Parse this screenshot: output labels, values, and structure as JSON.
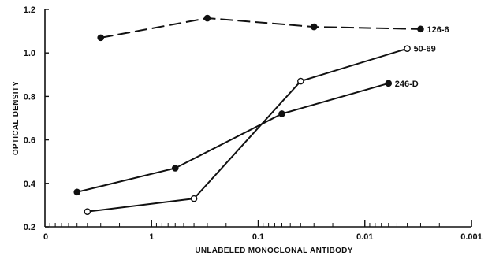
{
  "chart_data": {
    "type": "line",
    "title": "",
    "xlabel": "UNLABELED MONOCLONAL ANTIBODY",
    "ylabel": "OPTICAL DENSITY",
    "x_scale": "log-reversed",
    "xlim": [
      10,
      0.001
    ],
    "ylim": [
      0.2,
      1.2
    ],
    "x_ticks": [
      "0",
      "1",
      "0.1",
      "0.01",
      "0.001"
    ],
    "y_ticks": [
      "0.2",
      "0.4",
      "0.6",
      "0.8",
      "1.0",
      "1.2"
    ],
    "grid": false,
    "series": [
      {
        "name": "126-6",
        "line_style": "dashed",
        "marker": "filled",
        "x": [
          3.0,
          0.3,
          0.03,
          0.003
        ],
        "y": [
          1.07,
          1.16,
          1.12,
          1.11
        ]
      },
      {
        "name": "50-69",
        "line_style": "solid",
        "marker": "open",
        "x": [
          4.0,
          0.4,
          0.04,
          0.004
        ],
        "y": [
          0.27,
          0.33,
          0.87,
          1.02
        ]
      },
      {
        "name": "246-D",
        "line_style": "solid",
        "marker": "filled",
        "x": [
          5.0,
          0.6,
          0.06,
          0.006
        ],
        "y": [
          0.36,
          0.47,
          0.72,
          0.86
        ]
      }
    ]
  }
}
